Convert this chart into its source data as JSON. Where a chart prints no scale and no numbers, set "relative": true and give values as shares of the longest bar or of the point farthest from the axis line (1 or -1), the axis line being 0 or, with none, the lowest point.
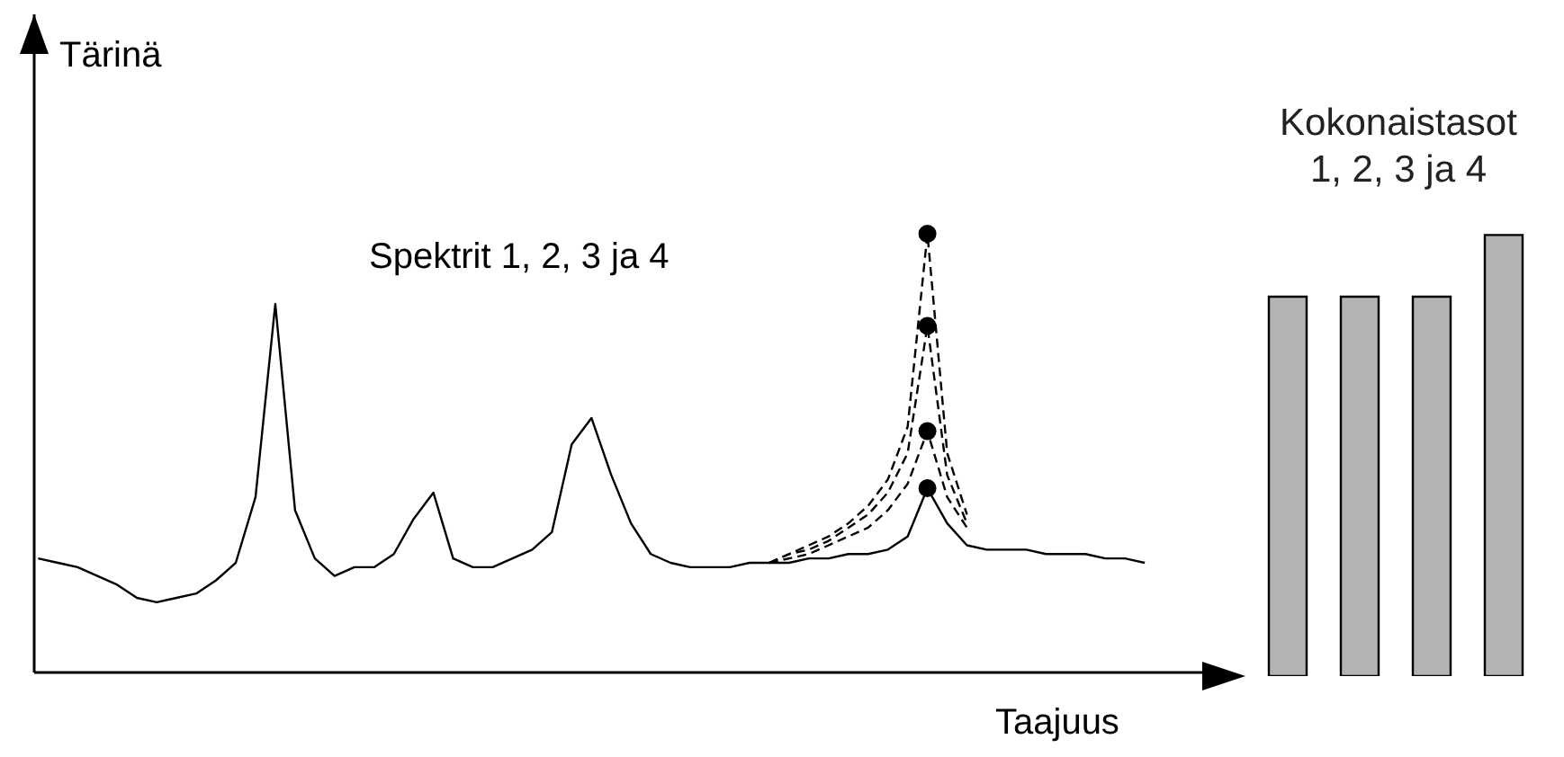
{
  "chart_data": [
    {
      "type": "line",
      "relative": true,
      "xlabel": "Taajuus",
      "ylabel": "Tärinä",
      "annotations": [
        "Spektrit 1, 2, 3 ja 4"
      ],
      "categories": [
        null,
        null,
        null,
        null,
        null,
        null,
        null,
        null,
        null,
        null,
        null,
        null,
        null,
        null,
        null,
        null,
        null,
        null,
        null,
        null,
        null,
        null,
        null,
        null,
        null,
        null,
        null,
        null,
        null,
        null,
        null,
        null,
        null,
        null,
        null,
        null,
        null,
        null,
        null,
        null,
        null,
        null,
        null,
        null,
        null,
        null,
        null,
        null,
        null,
        null,
        null,
        null,
        null,
        null,
        null,
        null,
        null
      ],
      "series": [
        {
          "color": "#000000",
          "line_style": "solid",
          "values": [
            0.26,
            0.25,
            0.24,
            0.22,
            0.2,
            0.17,
            0.16,
            0.17,
            0.18,
            0.21,
            0.25,
            0.4,
            0.84,
            0.37,
            0.26,
            0.22,
            0.24,
            0.24,
            0.27,
            0.35,
            0.41,
            0.26,
            0.24,
            0.24,
            0.26,
            0.28,
            0.32,
            0.52,
            0.58,
            0.45,
            0.34,
            0.27,
            0.25,
            0.24,
            0.24,
            0.24,
            0.25,
            0.25,
            0.25,
            0.26,
            0.26,
            0.27,
            0.27,
            0.28,
            0.31,
            0.42,
            0.34,
            0.29,
            0.28,
            0.28,
            0.28,
            0.27,
            0.27,
            0.27,
            0.26,
            0.26,
            0.25
          ]
        },
        {
          "color": "#000000",
          "line_style": "dashed",
          "values": [
            null,
            null,
            null,
            null,
            null,
            null,
            null,
            null,
            null,
            null,
            null,
            null,
            null,
            null,
            null,
            null,
            null,
            null,
            null,
            null,
            null,
            null,
            null,
            null,
            null,
            null,
            null,
            null,
            null,
            null,
            null,
            null,
            null,
            null,
            null,
            null,
            null,
            0.25,
            0.26,
            0.27,
            0.29,
            0.31,
            0.33,
            0.37,
            0.43,
            0.55,
            0.4,
            0.33,
            null,
            null,
            null,
            null,
            null,
            null,
            null,
            null,
            null
          ]
        },
        {
          "color": "#000000",
          "line_style": "dashed",
          "values": [
            null,
            null,
            null,
            null,
            null,
            null,
            null,
            null,
            null,
            null,
            null,
            null,
            null,
            null,
            null,
            null,
            null,
            null,
            null,
            null,
            null,
            null,
            null,
            null,
            null,
            null,
            null,
            null,
            null,
            null,
            null,
            null,
            null,
            null,
            null,
            null,
            null,
            0.25,
            0.27,
            0.28,
            0.3,
            0.33,
            0.36,
            0.41,
            0.5,
            0.79,
            0.45,
            0.34,
            null,
            null,
            null,
            null,
            null,
            null,
            null,
            null,
            null
          ]
        },
        {
          "color": "#000000",
          "line_style": "dashed",
          "values": [
            null,
            null,
            null,
            null,
            null,
            null,
            null,
            null,
            null,
            null,
            null,
            null,
            null,
            null,
            null,
            null,
            null,
            null,
            null,
            null,
            null,
            null,
            null,
            null,
            null,
            null,
            null,
            null,
            null,
            null,
            null,
            null,
            null,
            null,
            null,
            null,
            null,
            0.25,
            0.27,
            0.29,
            0.31,
            0.34,
            0.38,
            0.44,
            0.56,
            1.0,
            0.5,
            0.36,
            null,
            null,
            null,
            null,
            null,
            null,
            null,
            null,
            null
          ]
        }
      ]
    },
    {
      "type": "bar",
      "relative": true,
      "title": "Kokonaistasot 1, 2, 3 ja 4",
      "categories": [
        null,
        null,
        null,
        null
      ],
      "values": [
        0.86,
        0.86,
        0.86,
        1.0
      ],
      "color": "#b3b3b3"
    }
  ]
}
